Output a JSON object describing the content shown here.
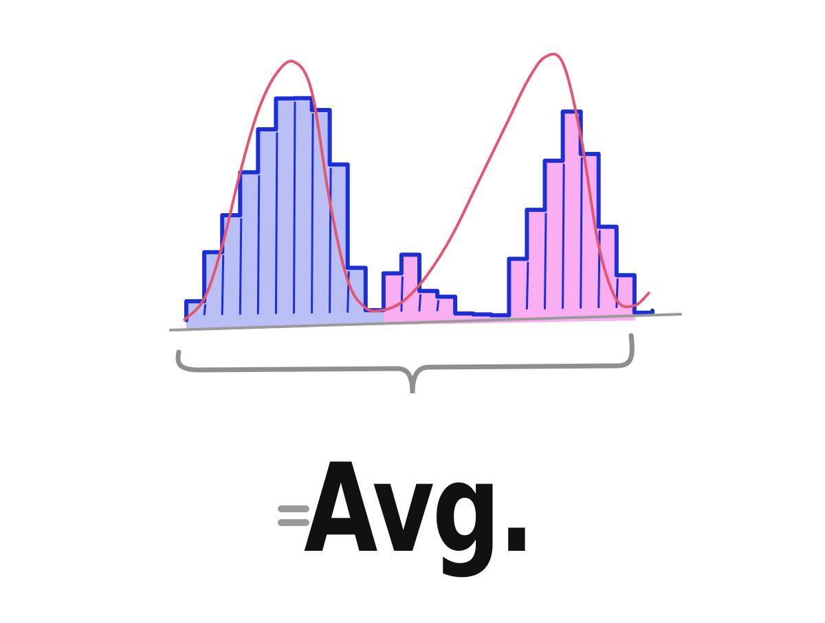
{
  "chart_data": {
    "type": "bar",
    "title": "",
    "xlabel": "",
    "ylabel": "",
    "x": [
      1,
      2,
      3,
      4,
      5,
      6,
      7,
      8,
      9,
      10,
      11,
      12,
      13,
      14,
      15,
      16,
      17,
      18,
      19,
      20,
      21,
      22,
      23,
      24,
      25,
      26
    ],
    "series": [
      {
        "values": [
          2,
          6,
          9,
          12.5,
          16,
          18.5,
          18.5,
          17.5,
          13,
          4.5,
          1,
          0,
          0,
          0,
          0,
          0,
          0,
          0,
          0,
          0,
          0,
          0,
          0,
          0,
          0,
          0
        ],
        "color": "#b9bff5"
      },
      {
        "values": [
          0,
          0,
          0,
          0,
          0,
          0,
          0,
          0,
          0,
          0,
          0,
          4,
          5.5,
          2.5,
          2,
          0.6,
          0.5,
          0.4,
          5,
          9,
          13,
          17,
          13.5,
          7.5,
          3.5,
          0
        ],
        "color": "#f8aef0"
      }
    ],
    "fit_curve": {
      "x": [
        0.4,
        1.5,
        2.5,
        3.5,
        4.5,
        5.5,
        6.5,
        7.5,
        8.5,
        9.5,
        10.5,
        11.5,
        12.5,
        13.5,
        14.5,
        15.5,
        16.5,
        17.5,
        18.5,
        19.5,
        20.5,
        21.5,
        22.5,
        23.5,
        24.5,
        25.5,
        26.3
      ],
      "y": [
        0.5,
        2.2,
        6.5,
        12.5,
        17.5,
        20.5,
        21.5,
        19,
        10,
        3.5,
        1.2,
        1,
        1.6,
        3,
        5,
        7.5,
        10.5,
        13.5,
        16.5,
        19.5,
        21.5,
        21,
        15,
        6,
        1.5,
        1,
        2
      ]
    },
    "ylim": [
      0,
      22
    ],
    "xlim": [
      0,
      27
    ],
    "grid": false,
    "legend": "none",
    "curve_color": "#e4566f",
    "outline_color": "#1c2fd6",
    "baseline_color": "#9a9a9a"
  },
  "caption": {
    "equals": "=",
    "text": "Avg."
  },
  "colors": {
    "brace": "#8f8f8f",
    "caption_text": "#111111"
  }
}
